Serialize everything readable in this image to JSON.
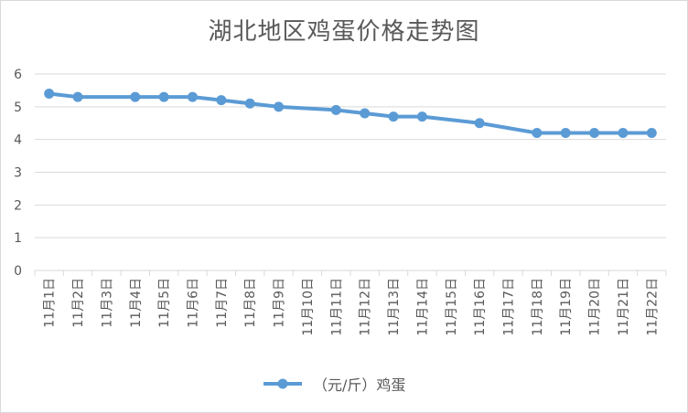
{
  "chart_data": {
    "type": "line",
    "title": "湖北地区鸡蛋价格走势图",
    "categories": [
      "11月1日",
      "11月2日",
      "11月3日",
      "11月4日",
      "11月5日",
      "11月6日",
      "11月7日",
      "11月8日",
      "11月9日",
      "11月10日",
      "11月11日",
      "11月12日",
      "11月13日",
      "11月14日",
      "11月15日",
      "11月16日",
      "11月17日",
      "11月18日",
      "11月19日",
      "11月20日",
      "11月21日",
      "11月22日"
    ],
    "x": [
      1,
      2,
      4,
      5,
      6,
      7,
      8,
      9,
      11,
      12,
      13,
      14,
      16,
      18,
      19,
      20,
      21,
      22
    ],
    "series": [
      {
        "name": "（元/斤）鸡蛋",
        "values": [
          5.4,
          5.3,
          5.3,
          5.3,
          5.3,
          5.2,
          5.1,
          5.0,
          4.9,
          4.8,
          4.7,
          4.7,
          4.5,
          4.2,
          4.2,
          4.2,
          4.2,
          4.2
        ]
      }
    ],
    "ylim": [
      0,
      6
    ],
    "yticks": [
      "0",
      "1",
      "2",
      "3",
      "4",
      "5",
      "6"
    ],
    "grid": true,
    "legend_position": "bottom",
    "colors": {
      "line": "#5b9bd5",
      "grid": "#d9d9d9",
      "text": "#595959"
    }
  }
}
